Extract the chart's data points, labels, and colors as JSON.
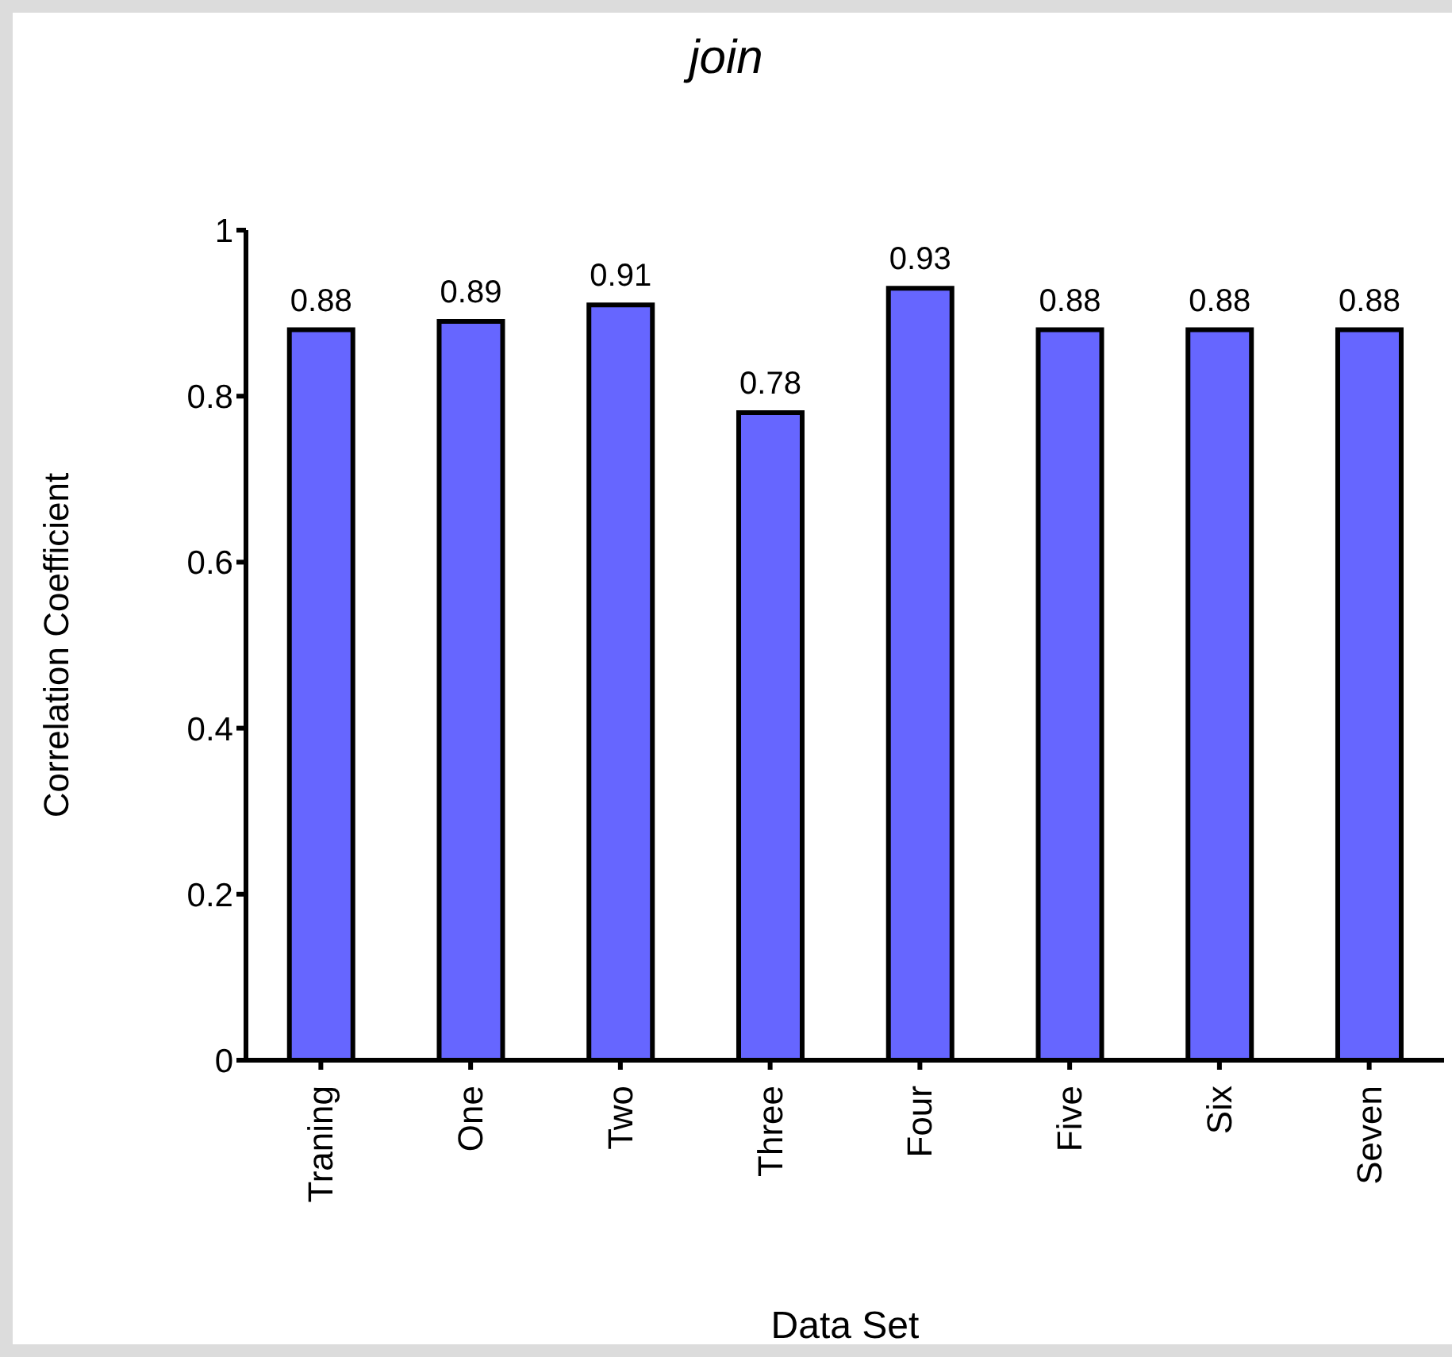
{
  "chart_data": {
    "type": "bar",
    "title": "join",
    "xlabel": "Data Set",
    "ylabel": "Correlation Coefficient",
    "categories": [
      "Traning",
      "One",
      "Two",
      "Three",
      "Four",
      "Five",
      "Six",
      "Seven"
    ],
    "values": [
      0.88,
      0.89,
      0.91,
      0.78,
      0.93,
      0.88,
      0.88,
      0.88
    ],
    "color": "#6666ff",
    "ylim": [
      0,
      1
    ],
    "yticks": [
      0,
      0.2,
      0.4,
      0.6,
      0.8,
      1
    ],
    "grid": false,
    "legend": false,
    "data_labels": true
  }
}
